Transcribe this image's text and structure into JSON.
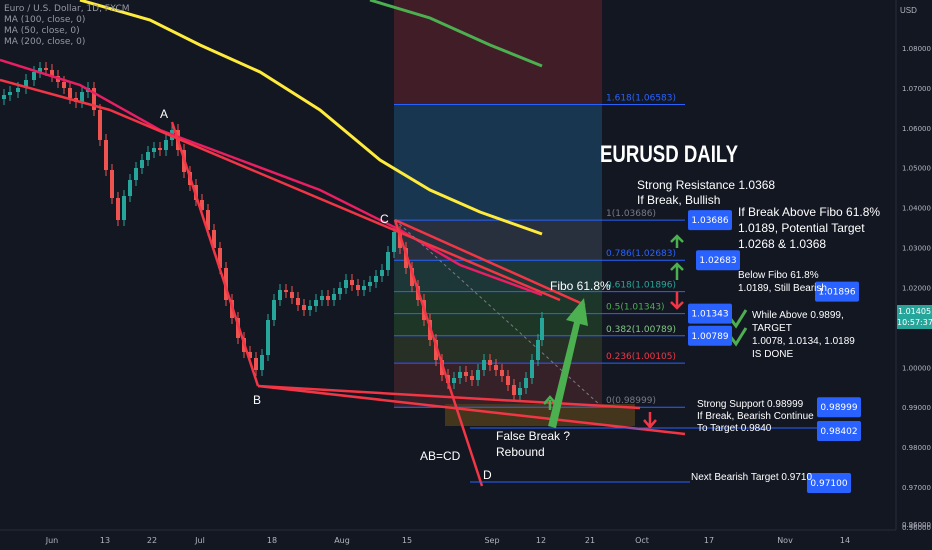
{
  "legend": {
    "symbol": "Euro / U.S. Dollar, 1D, FXCM",
    "ma1": "MA (100, close, 0)",
    "ma2": "MA (50, close, 0)",
    "ma3": "MA (200, close, 0)"
  },
  "currency": "USD",
  "title": "EURUSD DAILY",
  "last_price": "1.01405",
  "countdown": "10:57:37",
  "price_scale": [
    {
      "label": "1.08000",
      "price": 1.08
    },
    {
      "label": "1.07000",
      "price": 1.07
    },
    {
      "label": "1.06000",
      "price": 1.06
    },
    {
      "label": "1.05000",
      "price": 1.05
    },
    {
      "label": "1.04000",
      "price": 1.04
    },
    {
      "label": "1.03000",
      "price": 1.03
    },
    {
      "label": "1.02000",
      "price": 1.02
    },
    {
      "label": "1.00000",
      "price": 1.0
    },
    {
      "label": "0.99000",
      "price": 0.99
    },
    {
      "label": "0.98000",
      "price": 0.98
    },
    {
      "label": "0.97000",
      "price": 0.97
    },
    {
      "label": "0.96000",
      "price": 0.96
    }
  ],
  "time_scale": [
    "Jun",
    "13",
    "22",
    "Jul",
    "18",
    "Aug",
    "15",
    "Sep",
    "12",
    "21",
    "Oct",
    "17",
    "Nov",
    "14"
  ],
  "fib_levels": [
    {
      "label": "1.618(1.06583)",
      "price": 1.06583,
      "color": "#2962ff"
    },
    {
      "label": "1(1.03686)",
      "price": 1.03686,
      "color": "#787b86"
    },
    {
      "label": "0.786(1.02683)",
      "price": 1.02683,
      "color": "#2962ff"
    },
    {
      "label": "0.618(1.01896)",
      "price": 1.01896,
      "color": "#26a69a"
    },
    {
      "label": "0.5(1.01343)",
      "price": 1.01343,
      "color": "#4caf50"
    },
    {
      "label": "0.382(1.00789)",
      "price": 1.00789,
      "color": "#81c784"
    },
    {
      "label": "0.236(1.00105)",
      "price": 1.00105,
      "color": "#f23645"
    },
    {
      "label": "0(0.98999)",
      "price": 0.98999,
      "color": "#787b86"
    }
  ],
  "price_boxes": [
    {
      "text": "1.03686",
      "price": 1.03686
    },
    {
      "text": "1.02683",
      "price": 1.02683
    },
    {
      "text": "1.01896",
      "price": 1.01896
    },
    {
      "text": "1.01343",
      "price": 1.01343
    },
    {
      "text": "1.00789",
      "price": 1.00789
    },
    {
      "text": "0.98999",
      "price": 0.98999
    },
    {
      "text": "0.98402",
      "price": 0.98402
    },
    {
      "text": "0.97100",
      "price": 0.971
    }
  ],
  "points": [
    "A",
    "B",
    "C",
    "D"
  ],
  "notes": {
    "resistance_1": "Strong Resistance 1.0368",
    "resistance_2": "If Break, Bullish",
    "break_1": "If Break Above  Fibo 61.8%",
    "break_2": "1.0189, Potential Target",
    "break_3": "1.0268 & 1.0368",
    "below_1": "Below Fibo 61.8%",
    "below_2": "1.0189, Still Bearish",
    "fibo": "Fibo 61.8%",
    "while_1": "While Above 0.9899,",
    "while_2": "TARGET",
    "while_3": "1.0078, 1.0134, 1.0189",
    "while_4": "IS DONE",
    "support_1": "Strong Support 0.98999",
    "support_2": "If Break, Bearish Continue",
    "support_3": "To Target 0.9840",
    "false_1": "False Break ?",
    "false_2": "Rebound",
    "abcd": "AB=CD",
    "next": "Next Bearish Target 0.9710"
  },
  "colors": {
    "background": "#131722",
    "bull": "#26a69a",
    "bear": "#ef5350",
    "trend": "#f23645",
    "ma100": "#e91e63",
    "ma50": "#ffeb3b",
    "ma200": "#4caf50",
    "label_box": "#2962ff",
    "arrow_green": "#4caf50"
  }
}
